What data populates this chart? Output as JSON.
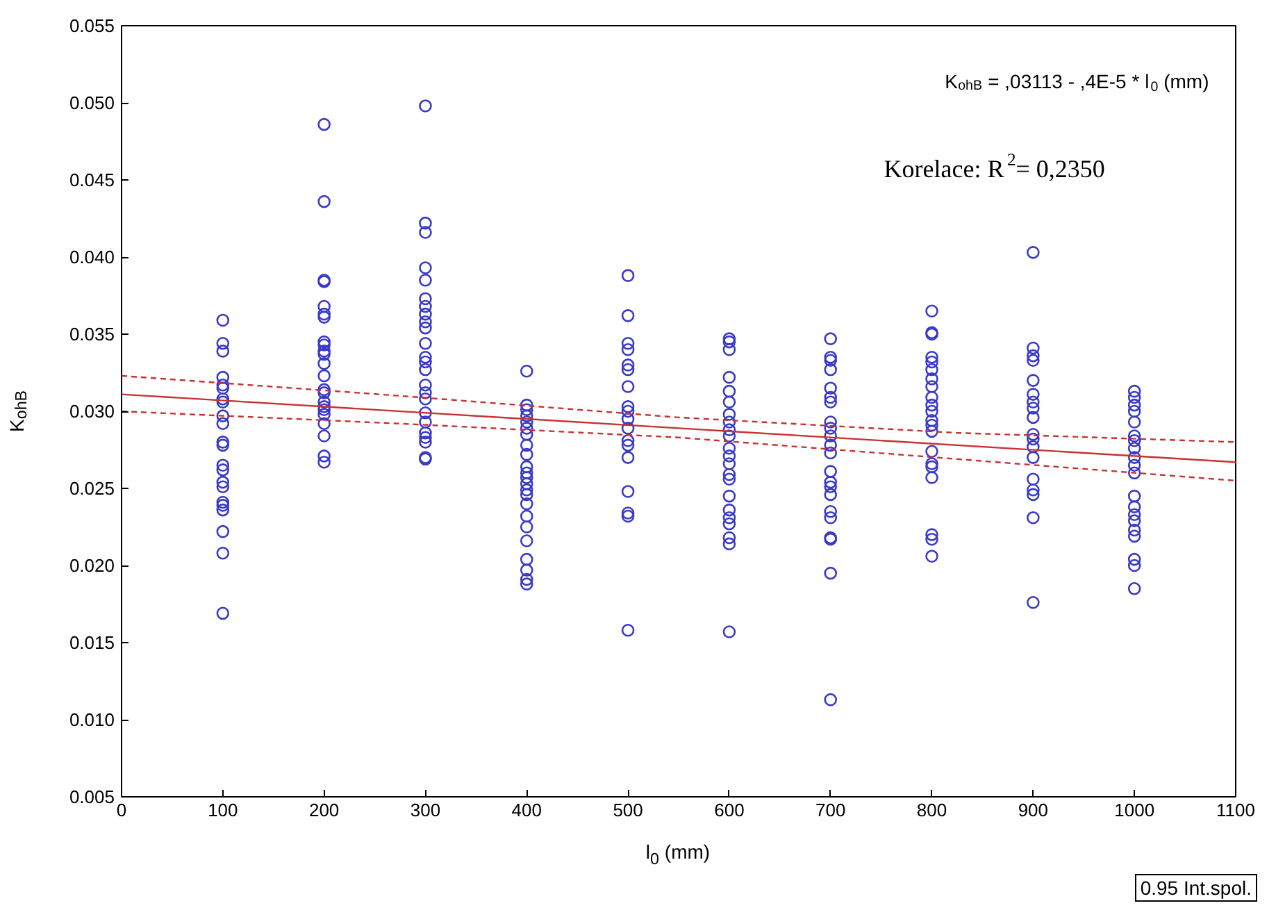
{
  "chart_data": {
    "type": "scatter",
    "xlabel": "l$_{0}$ (mm)",
    "ylabel": "K$_{ohB}$",
    "annotations": [
      "K$_{ohB}$ = ,03113 - ,4E-5  * l$_{0}$ (mm)",
      "Korelace: R$^{2}$=  0,2350",
      "0.95 Int.spol."
    ],
    "xlim": [
      0,
      1100
    ],
    "xticks": [
      0,
      100,
      200,
      300,
      400,
      500,
      600,
      700,
      800,
      900,
      1000,
      1100
    ],
    "ylim": [
      0.005,
      0.055
    ],
    "yticks": [
      0.005,
      {
        "value": 0.01,
        "label": "0.010"
      },
      0.015,
      {
        "value": 0.02,
        "label": "0.020"
      },
      0.025,
      {
        "value": 0.03,
        "label": "0.030"
      },
      0.035,
      {
        "value": 0.04,
        "label": "0.040"
      },
      0.045,
      {
        "value": 0.05,
        "label": "0.050"
      },
      0.055
    ],
    "grid": false,
    "marker": "circle",
    "series": [
      {
        "color": "#3a3ac8",
        "x": [
          100,
          100,
          100,
          100,
          100,
          100,
          100,
          100,
          100,
          100,
          100,
          100,
          100,
          100,
          100,
          100,
          100,
          100,
          100,
          100,
          100,
          100,
          200,
          200,
          200,
          200,
          200,
          200,
          200,
          200,
          200,
          200,
          200,
          200,
          200,
          200,
          200,
          200,
          200,
          200,
          200,
          200,
          200,
          200,
          200,
          300,
          300,
          300,
          300,
          300,
          300,
          300,
          300,
          300,
          300,
          300,
          300,
          300,
          300,
          300,
          300,
          300,
          300,
          300,
          300,
          300,
          300,
          300,
          300,
          400,
          400,
          400,
          400,
          400,
          400,
          400,
          400,
          400,
          400,
          400,
          400,
          400,
          400,
          400,
          400,
          400,
          400,
          400,
          400,
          400,
          400,
          400,
          500,
          500,
          500,
          500,
          500,
          500,
          500,
          500,
          500,
          500,
          500,
          500,
          500,
          500,
          500,
          500,
          500,
          500,
          600,
          600,
          600,
          600,
          600,
          600,
          600,
          600,
          600,
          600,
          600,
          600,
          600,
          600,
          600,
          600,
          600,
          600,
          600,
          600,
          600,
          600,
          700,
          700,
          700,
          700,
          700,
          700,
          700,
          700,
          700,
          700,
          700,
          700,
          700,
          700,
          700,
          700,
          700,
          700,
          700,
          700,
          700,
          700,
          800,
          800,
          800,
          800,
          800,
          800,
          800,
          800,
          800,
          800,
          800,
          800,
          800,
          800,
          800,
          800,
          800,
          800,
          800,
          800,
          800,
          900,
          900,
          900,
          900,
          900,
          900,
          900,
          900,
          900,
          900,
          900,
          900,
          900,
          900,
          900,
          900,
          900,
          900,
          1000,
          1000,
          1000,
          1000,
          1000,
          1000,
          1000,
          1000,
          1000,
          1000,
          1000,
          1000,
          1000,
          1000,
          1000,
          1000,
          1000,
          1000,
          1000,
          1000
        ],
        "values": [
          0.0359,
          0.0344,
          0.0339,
          0.0322,
          0.0317,
          0.0315,
          0.0308,
          0.0306,
          0.0297,
          0.0292,
          0.028,
          0.0278,
          0.0265,
          0.0262,
          0.0254,
          0.0251,
          0.0241,
          0.0239,
          0.0236,
          0.0222,
          0.0208,
          0.0169,
          0.0486,
          0.0436,
          0.0385,
          0.0384,
          0.0368,
          0.0363,
          0.0361,
          0.0345,
          0.0343,
          0.0339,
          0.0337,
          0.0331,
          0.0323,
          0.0314,
          0.0312,
          0.0306,
          0.0303,
          0.0301,
          0.0298,
          0.0292,
          0.0284,
          0.0271,
          0.0267,
          0.0498,
          0.0422,
          0.0416,
          0.0393,
          0.0385,
          0.0373,
          0.0368,
          0.0363,
          0.0358,
          0.0354,
          0.0344,
          0.0335,
          0.0332,
          0.0327,
          0.0317,
          0.0312,
          0.0308,
          0.0299,
          0.0293,
          0.0286,
          0.0283,
          0.028,
          0.027,
          0.0269,
          0.0326,
          0.0304,
          0.0301,
          0.0297,
          0.0293,
          0.0289,
          0.0285,
          0.0278,
          0.0272,
          0.0264,
          0.026,
          0.0257,
          0.0253,
          0.0249,
          0.0246,
          0.024,
          0.0232,
          0.0225,
          0.0216,
          0.0204,
          0.0197,
          0.0191,
          0.0188,
          0.0388,
          0.0362,
          0.0344,
          0.034,
          0.033,
          0.0327,
          0.0316,
          0.0303,
          0.03,
          0.0295,
          0.0289,
          0.0281,
          0.0278,
          0.027,
          0.0248,
          0.0234,
          0.0232,
          0.0158,
          0.0347,
          0.0345,
          0.034,
          0.0322,
          0.0313,
          0.0306,
          0.0298,
          0.0293,
          0.0288,
          0.0284,
          0.0276,
          0.0271,
          0.0266,
          0.0259,
          0.0256,
          0.0245,
          0.0236,
          0.0231,
          0.0227,
          0.0218,
          0.0214,
          0.0157,
          0.0347,
          0.0335,
          0.0333,
          0.0327,
          0.0315,
          0.0309,
          0.0306,
          0.0293,
          0.0289,
          0.0284,
          0.0278,
          0.0273,
          0.0261,
          0.0254,
          0.0251,
          0.0246,
          0.0235,
          0.0231,
          0.0218,
          0.0217,
          0.0195,
          0.0113,
          0.0365,
          0.0351,
          0.035,
          0.0335,
          0.0332,
          0.0327,
          0.0321,
          0.0316,
          0.0309,
          0.0304,
          0.03,
          0.0294,
          0.0291,
          0.0287,
          0.0274,
          0.0266,
          0.0264,
          0.0257,
          0.022,
          0.0217,
          0.0206,
          0.0403,
          0.0341,
          0.0336,
          0.0333,
          0.032,
          0.0311,
          0.0306,
          0.0302,
          0.0296,
          0.0285,
          0.0282,
          0.0277,
          0.027,
          0.0256,
          0.0249,
          0.0246,
          0.0231,
          0.0176,
          0.0313,
          0.0309,
          0.0304,
          0.03,
          0.0293,
          0.0284,
          0.0281,
          0.0276,
          0.027,
          0.0265,
          0.026,
          0.0245,
          0.0238,
          0.0233,
          0.0229,
          0.0223,
          0.0219,
          0.0204,
          0.02,
          0.0185
        ]
      },
      {
        "type": "line",
        "color": "#c83232",
        "line_style": "solid",
        "marker": "none",
        "x": [
          0,
          1100
        ],
        "values": [
          0.0311,
          0.0267
        ]
      },
      {
        "type": "line",
        "color": "#c83232",
        "line_style": "dashed",
        "marker": "none",
        "x": [
          0,
          275,
          550,
          825,
          1100
        ],
        "values": [
          0.0323,
          0.031,
          0.0296,
          0.0286,
          0.028
        ]
      },
      {
        "type": "line",
        "color": "#c83232",
        "line_style": "dashed",
        "marker": "none",
        "x": [
          0,
          275,
          550,
          825,
          1100
        ],
        "values": [
          0.03,
          0.0292,
          0.0283,
          0.0269,
          0.0255
        ]
      }
    ]
  }
}
